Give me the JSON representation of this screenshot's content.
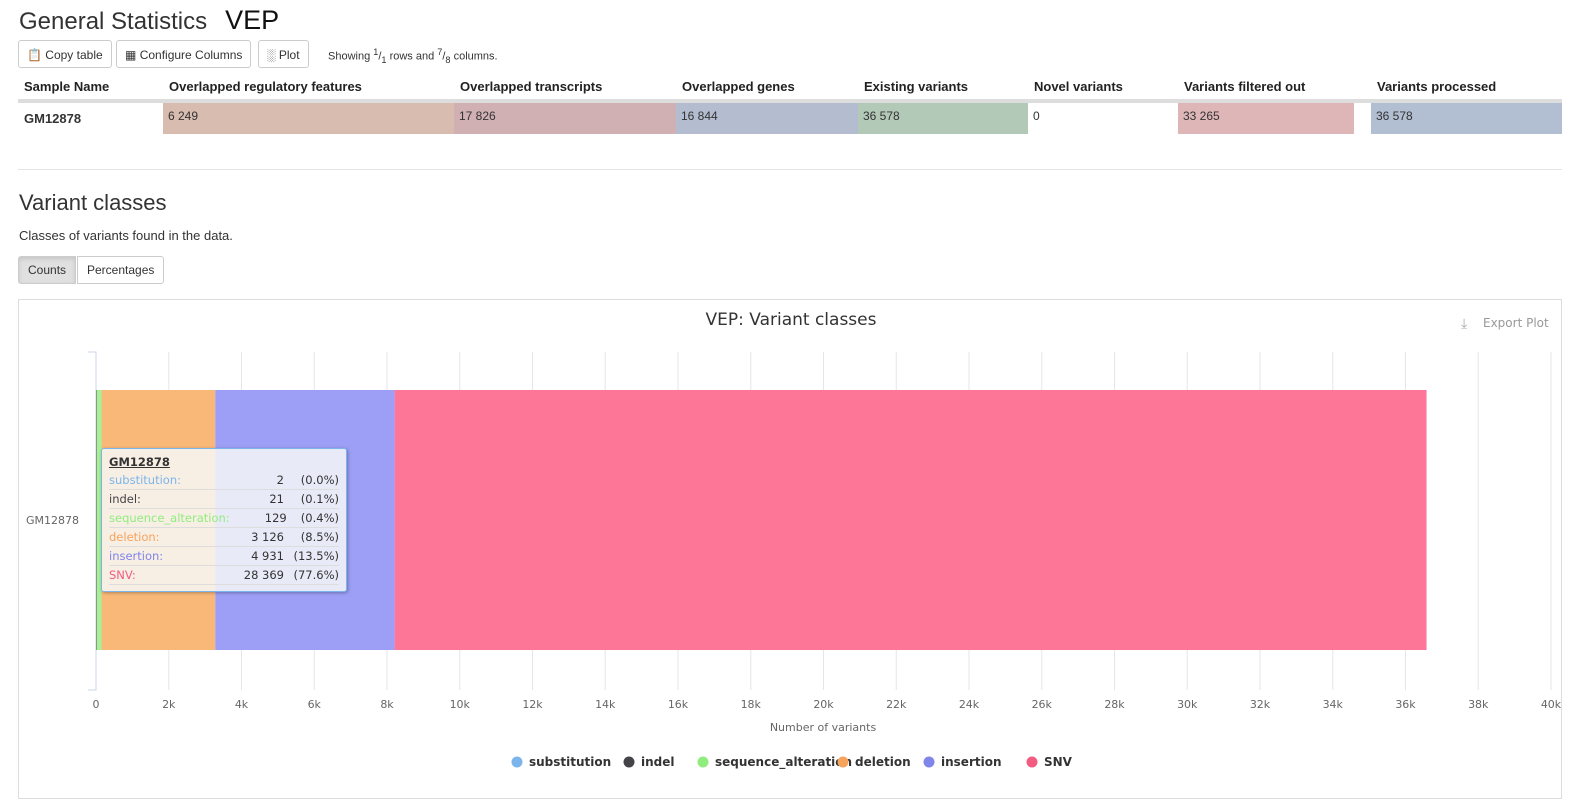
{
  "header": {
    "title": "General Statistics",
    "subtitle": "VEP"
  },
  "toolbar": {
    "copy": "Copy table",
    "configure": "Configure Columns",
    "plot": "Plot",
    "showing_pre": "Showing ",
    "rows_num": "1",
    "rows_den": "1",
    "showing_mid": " rows and ",
    "cols_num": "7",
    "cols_den": "8",
    "showing_post": " columns."
  },
  "table": {
    "headers": [
      "Sample Name",
      "Overlapped regulatory features",
      "Overlapped transcripts",
      "Overlapped genes",
      "Existing variants",
      "Novel variants",
      "Variants filtered out",
      "Variants processed"
    ],
    "row": {
      "sample": "GM12878",
      "cells": [
        {
          "value": "6 249",
          "fill": 1.0,
          "color": "#d9bcb0"
        },
        {
          "value": "17 826",
          "fill": 1.0,
          "color": "#d1b0b3"
        },
        {
          "value": "16 844",
          "fill": 1.0,
          "color": "#b4bdd0"
        },
        {
          "value": "36 578",
          "fill": 1.0,
          "color": "#b3c9b8"
        },
        {
          "value": "0",
          "fill": 0,
          "color": "#ffffff"
        },
        {
          "value": "33 265",
          "fill": 0.91,
          "color": "#deb6b7"
        },
        {
          "value": "36 578",
          "fill": 1.0,
          "color": "#b2bed2"
        }
      ]
    }
  },
  "section": {
    "title": "Variant classes",
    "description": "Classes of variants found in the data.",
    "toggle": [
      "Counts",
      "Percentages"
    ]
  },
  "chart_data": {
    "type": "bar",
    "orientation": "horizontal",
    "stacked": true,
    "title": "VEP: Variant classes",
    "export": "Export Plot",
    "categories": [
      "GM12878"
    ],
    "xlabel": "Number of variants",
    "xlim": [
      0,
      40000
    ],
    "xticks": [
      "0",
      "2k",
      "4k",
      "6k",
      "8k",
      "10k",
      "12k",
      "14k",
      "16k",
      "18k",
      "20k",
      "22k",
      "24k",
      "26k",
      "28k",
      "30k",
      "32k",
      "34k",
      "36k",
      "38k",
      "40k"
    ],
    "legend_position": "bottom",
    "series": [
      {
        "name": "substitution",
        "values": [
          2
        ],
        "pct": "(0.0%)",
        "color": "#7cb5ec",
        "bar": "#a3c9f0",
        "label": "2"
      },
      {
        "name": "indel",
        "values": [
          21
        ],
        "pct": "(0.1%)",
        "color": "#434348",
        "bar": "#6b6b70",
        "label": "21"
      },
      {
        "name": "sequence_alteration",
        "values": [
          129
        ],
        "pct": "(0.4%)",
        "color": "#90ed7d",
        "bar": "#a6f095",
        "label": "129"
      },
      {
        "name": "deletion",
        "values": [
          3126
        ],
        "pct": "(8.5%)",
        "color": "#f7a35c",
        "bar": "#f9b878",
        "label": "3 126"
      },
      {
        "name": "insertion",
        "values": [
          4931
        ],
        "pct": "(13.5%)",
        "color": "#8085e9",
        "bar": "#9c9ff5",
        "label": "4 931"
      },
      {
        "name": "SNV",
        "values": [
          28369
        ],
        "pct": "(77.6%)",
        "color": "#f15c80",
        "bar": "#fd7698",
        "label": "28 369"
      }
    ]
  }
}
